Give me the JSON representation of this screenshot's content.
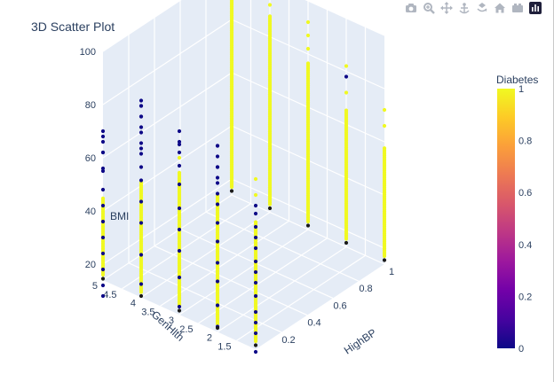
{
  "chart_data": {
    "type": "scatter3d",
    "title": "3D Scatter Plot",
    "x_axis": {
      "title": "HighBP",
      "range": [
        0,
        1
      ],
      "ticks": [
        "0.2",
        "0.4",
        "0.6",
        "0.8",
        "1"
      ]
    },
    "y_axis": {
      "title": "GenHlth",
      "range": [
        1,
        5
      ],
      "ticks": [
        "1.5",
        "2",
        "2.5",
        "3",
        "3.5",
        "4",
        "4.5",
        "5"
      ]
    },
    "z_axis": {
      "title": "BMI",
      "range": [
        14,
        100
      ],
      "ticks": [
        "20",
        "40",
        "60",
        "80",
        "100"
      ]
    },
    "colorbar": {
      "title": "Diabetes",
      "range": [
        0,
        1
      ],
      "ticks": [
        "0",
        "0.2",
        "0.4",
        "0.6",
        "0.8",
        "1"
      ],
      "colorscale": [
        "#0d0887",
        "#46039f",
        "#7201a8",
        "#9c179e",
        "#bd3786",
        "#d8576b",
        "#ed7953",
        "#fb9f3a",
        "#fdca26",
        "#f0f921"
      ]
    },
    "columns": [
      {
        "highbp": 0,
        "genhlth": 1,
        "bmi_min": 17,
        "bmi_max": 62,
        "diabetes_max": 1,
        "outliers": [
          {
            "bmi": 72,
            "diabetes": 1
          },
          {
            "bmi": 78,
            "diabetes": 1
          }
        ],
        "dark": [
          13,
          20,
          24,
          28,
          34,
          39,
          43,
          47,
          52,
          56,
          60,
          65,
          68
        ]
      },
      {
        "highbp": 0,
        "genhlth": 2,
        "bmi_min": 17,
        "bmi_max": 66,
        "diabetes_max": 1,
        "outliers": [
          {
            "bmi": 70,
            "diabetes": 0
          },
          {
            "bmi": 76,
            "diabetes": 0
          },
          {
            "bmi": 84,
            "diabetes": 0
          }
        ],
        "dark": [
          16,
          24,
          33,
          40,
          48,
          55,
          62,
          66,
          72,
          76,
          80,
          84
        ]
      },
      {
        "highbp": 0,
        "genhlth": 3,
        "bmi_min": 17,
        "bmi_max": 68,
        "diabetes_max": 1,
        "outliers": [
          {
            "bmi": 73,
            "diabetes": 1
          },
          {
            "bmi": 78,
            "diabetes": 0
          },
          {
            "bmi": 83,
            "diabetes": 0
          }
        ],
        "dark": [
          17,
          28,
          38,
          46,
          54,
          63,
          70,
          75,
          79
        ]
      },
      {
        "highbp": 0,
        "genhlth": 4,
        "bmi_min": 16,
        "bmi_max": 58,
        "diabetes_max": 1,
        "outliers": [
          {
            "bmi": 70,
            "diabetes": 0
          },
          {
            "bmi": 76,
            "diabetes": 0
          },
          {
            "bmi": 82,
            "diabetes": 0
          },
          {
            "bmi": 86,
            "diabetes": 0
          }
        ],
        "dark": [
          19,
          30,
          42,
          50,
          58,
          63,
          68,
          72,
          78,
          82,
          86,
          88
        ]
      },
      {
        "highbp": 0,
        "genhlth": 5,
        "bmi_min": 16,
        "bmi_max": 45,
        "diabetes_max": 1,
        "outliers": [
          {
            "bmi": 56,
            "diabetes": 0
          },
          {
            "bmi": 62,
            "diabetes": 0
          },
          {
            "bmi": 66,
            "diabetes": 0
          },
          {
            "bmi": 70,
            "diabetes": 0
          }
        ],
        "dark": [
          8,
          12,
          18,
          24,
          30,
          36,
          42,
          48,
          55,
          62,
          68
        ]
      },
      {
        "highbp": 1,
        "genhlth": 1,
        "bmi_min": 17,
        "bmi_max": 58,
        "diabetes_max": 1,
        "outliers": [
          {
            "bmi": 66,
            "diabetes": 1
          },
          {
            "bmi": 72,
            "diabetes": 1
          }
        ],
        "dark": []
      },
      {
        "highbp": 1,
        "genhlth": 2,
        "bmi_min": 17,
        "bmi_max": 66,
        "diabetes_max": 1,
        "outliers": [
          {
            "bmi": 72,
            "diabetes": 1
          },
          {
            "bmi": 78,
            "diabetes": 0
          },
          {
            "bmi": 82,
            "diabetes": 1
          }
        ],
        "dark": []
      },
      {
        "highbp": 1,
        "genhlth": 3,
        "bmi_min": 17,
        "bmi_max": 77,
        "diabetes_max": 1,
        "outliers": [
          {
            "bmi": 82,
            "diabetes": 1
          },
          {
            "bmi": 87,
            "diabetes": 1
          },
          {
            "bmi": 92,
            "diabetes": 1
          }
        ],
        "dark": []
      },
      {
        "highbp": 1,
        "genhlth": 4,
        "bmi_min": 17,
        "bmi_max": 88,
        "diabetes_max": 1,
        "outliers": [
          {
            "bmi": 92,
            "diabetes": 1
          }
        ],
        "dark": []
      },
      {
        "highbp": 1,
        "genhlth": 5,
        "bmi_min": 17,
        "bmi_max": 99,
        "diabetes_max": 1,
        "outliers": [],
        "dark": []
      }
    ]
  },
  "modebar": {
    "icons": [
      "camera-icon",
      "zoom-icon",
      "pan-icon",
      "orbit-icon",
      "turntable-icon",
      "reset-camera-icon",
      "hover-icon",
      "plotly-logo-icon"
    ]
  }
}
